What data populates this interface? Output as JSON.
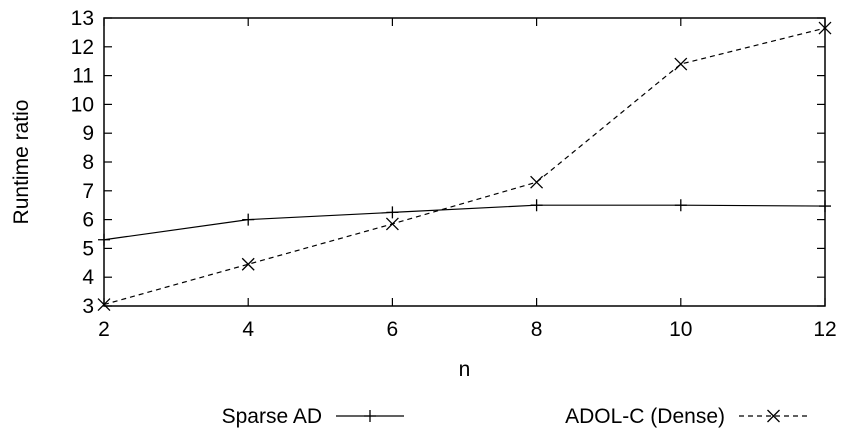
{
  "chart_data": {
    "type": "line",
    "title": "",
    "xlabel": "n",
    "ylabel": "Runtime ratio",
    "xlim": [
      2,
      12
    ],
    "ylim": [
      3,
      13
    ],
    "xticks": [
      "2",
      "4",
      "6",
      "8",
      "10",
      "12"
    ],
    "yticks": [
      "3",
      "4",
      "5",
      "6",
      "7",
      "8",
      "9",
      "10",
      "11",
      "12",
      "13"
    ],
    "grid": false,
    "legend_position": "bottom",
    "series": [
      {
        "name": "Sparse AD",
        "marker": "plus",
        "line_style": "solid",
        "x": [
          2,
          4,
          6,
          8,
          10,
          12
        ],
        "y": [
          5.3,
          6.0,
          6.25,
          6.5,
          6.5,
          6.47
        ]
      },
      {
        "name": "ADOL-C (Dense)",
        "marker": "cross",
        "line_style": "dashed",
        "x": [
          2,
          4,
          6,
          8,
          10,
          12
        ],
        "y": [
          3.05,
          4.45,
          5.85,
          7.3,
          11.4,
          12.65
        ]
      }
    ]
  }
}
